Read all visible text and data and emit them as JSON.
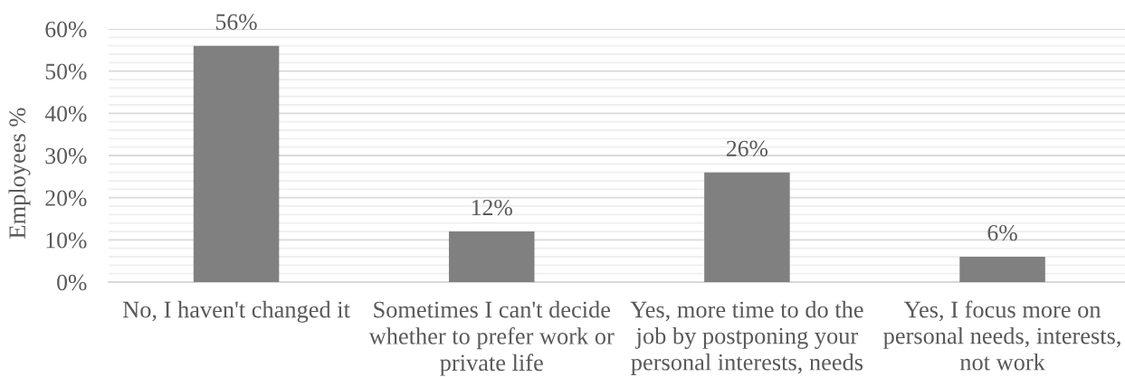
{
  "chart_data": {
    "type": "bar",
    "ylabel": "Employees %",
    "categories": [
      "No, I haven't changed it",
      "Sometimes I can't decide whether to prefer work or private life",
      "Yes, more time to do the job by postponing your personal interests, needs",
      "Yes, I focus more on personal needs, interests, not work"
    ],
    "values": [
      56,
      12,
      26,
      6
    ],
    "color": "#808080",
    "value_labels": [
      "56%",
      "12%",
      "26%",
      "6%"
    ],
    "ylim": [
      0,
      60
    ],
    "yticks": [
      {
        "value": 0,
        "label": "0%"
      },
      {
        "value": 2,
        "label": null
      },
      {
        "value": 4,
        "label": null
      },
      {
        "value": 6,
        "label": null
      },
      {
        "value": 8,
        "label": null
      },
      {
        "value": 10,
        "label": "10%"
      },
      {
        "value": 12,
        "label": null
      },
      {
        "value": 14,
        "label": null
      },
      {
        "value": 16,
        "label": null
      },
      {
        "value": 18,
        "label": null
      },
      {
        "value": 20,
        "label": "20%"
      },
      {
        "value": 22,
        "label": null
      },
      {
        "value": 24,
        "label": null
      },
      {
        "value": 26,
        "label": null
      },
      {
        "value": 28,
        "label": null
      },
      {
        "value": 30,
        "label": "30%"
      },
      {
        "value": 32,
        "label": null
      },
      {
        "value": 34,
        "label": null
      },
      {
        "value": 36,
        "label": null
      },
      {
        "value": 38,
        "label": null
      },
      {
        "value": 40,
        "label": "40%"
      },
      {
        "value": 42,
        "label": null
      },
      {
        "value": 44,
        "label": null
      },
      {
        "value": 46,
        "label": null
      },
      {
        "value": 48,
        "label": null
      },
      {
        "value": 50,
        "label": "50%"
      },
      {
        "value": 52,
        "label": null
      },
      {
        "value": 54,
        "label": null
      },
      {
        "value": 56,
        "label": null
      },
      {
        "value": 58,
        "label": null
      },
      {
        "value": 60,
        "label": "60%"
      }
    ],
    "grid": "y"
  }
}
